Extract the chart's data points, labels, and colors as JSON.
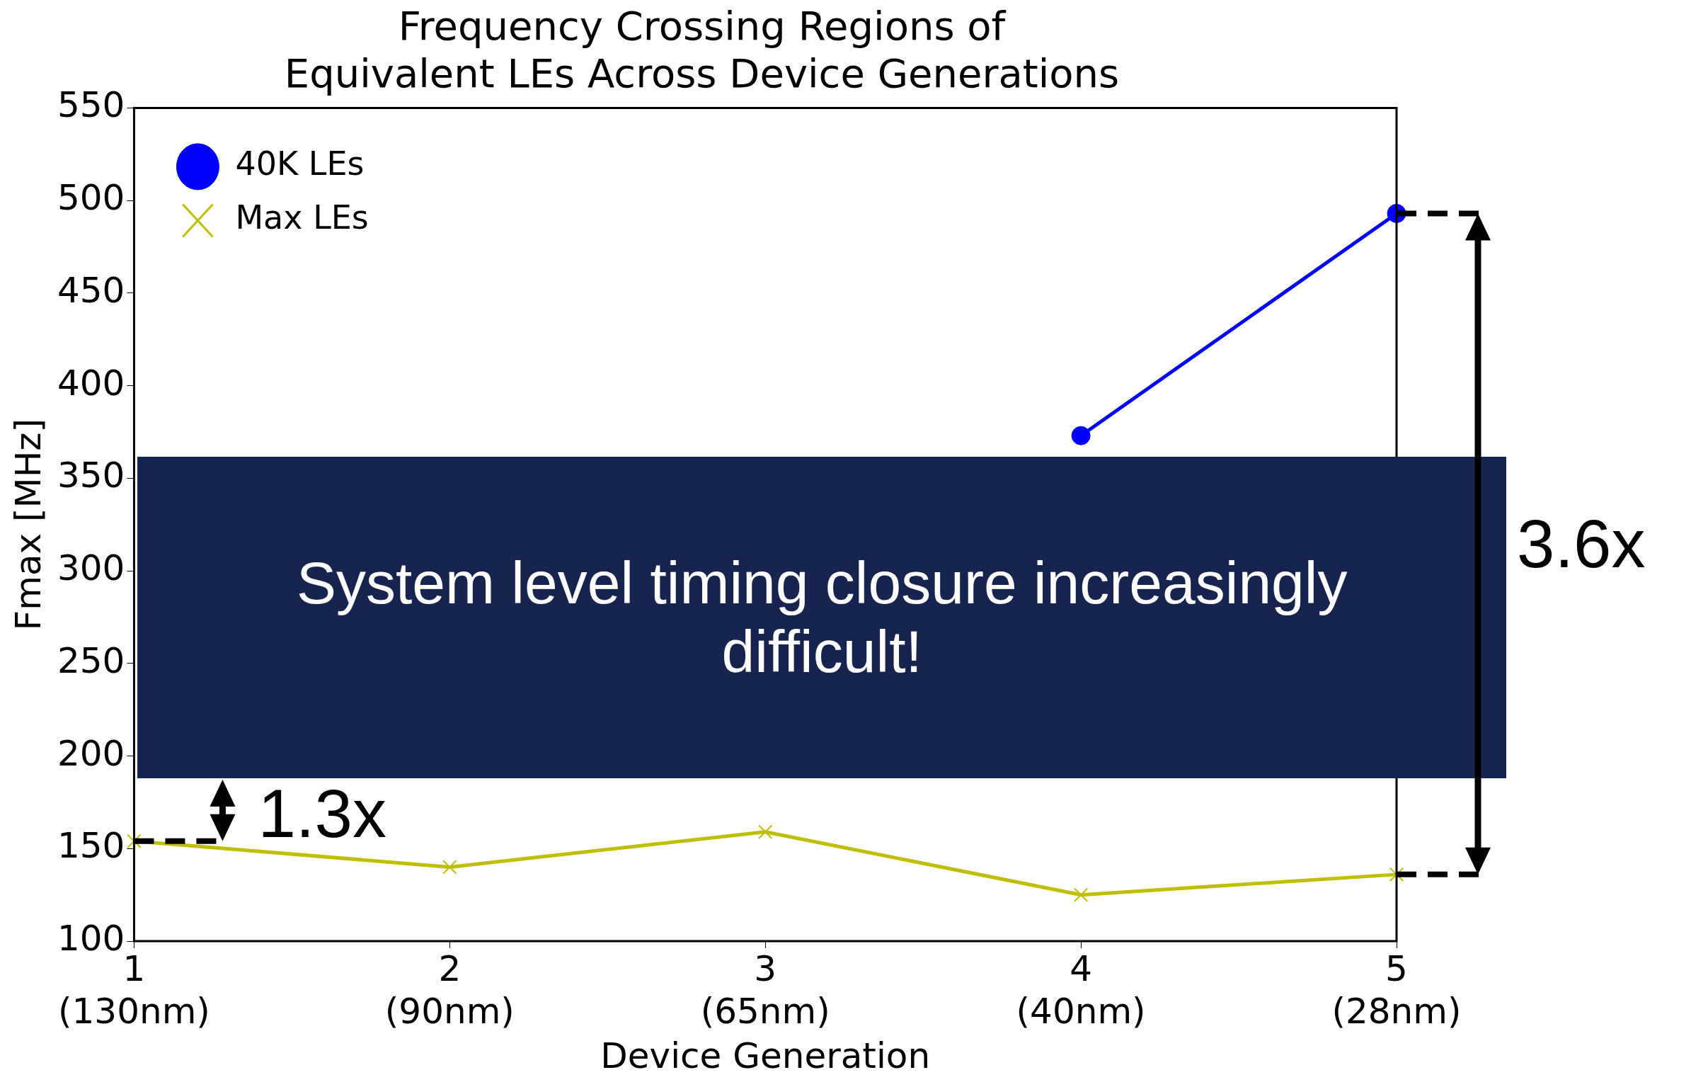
{
  "chart_data": {
    "type": "line",
    "title": "Frequency Crossing Regions of\nEquivalent LEs Across Device Generations",
    "xlabel": "Device Generation",
    "ylabel": "Fmax [MHz]",
    "categories": [
      "1\n(130nm)",
      "2\n(90nm)",
      "3\n(65nm)",
      "4\n(40nm)",
      "5\n(28nm)"
    ],
    "series": [
      {
        "name": "40K LEs",
        "color": "#0000ff",
        "marker": "circle",
        "values": [
          null,
          null,
          null,
          373,
          493
        ]
      },
      {
        "name": "Max LEs",
        "color": "#bfbf00",
        "marker": "cross",
        "values": [
          154,
          140,
          159,
          125,
          136
        ]
      }
    ],
    "ylim": [
      100,
      550
    ],
    "yticks": [
      100,
      150,
      200,
      250,
      300,
      350,
      400,
      450,
      500,
      550
    ],
    "grid": false,
    "legend": "top left",
    "annotations": [
      "System level timing closure increasingly difficult!",
      "3.6x",
      "1.3x"
    ]
  }
}
